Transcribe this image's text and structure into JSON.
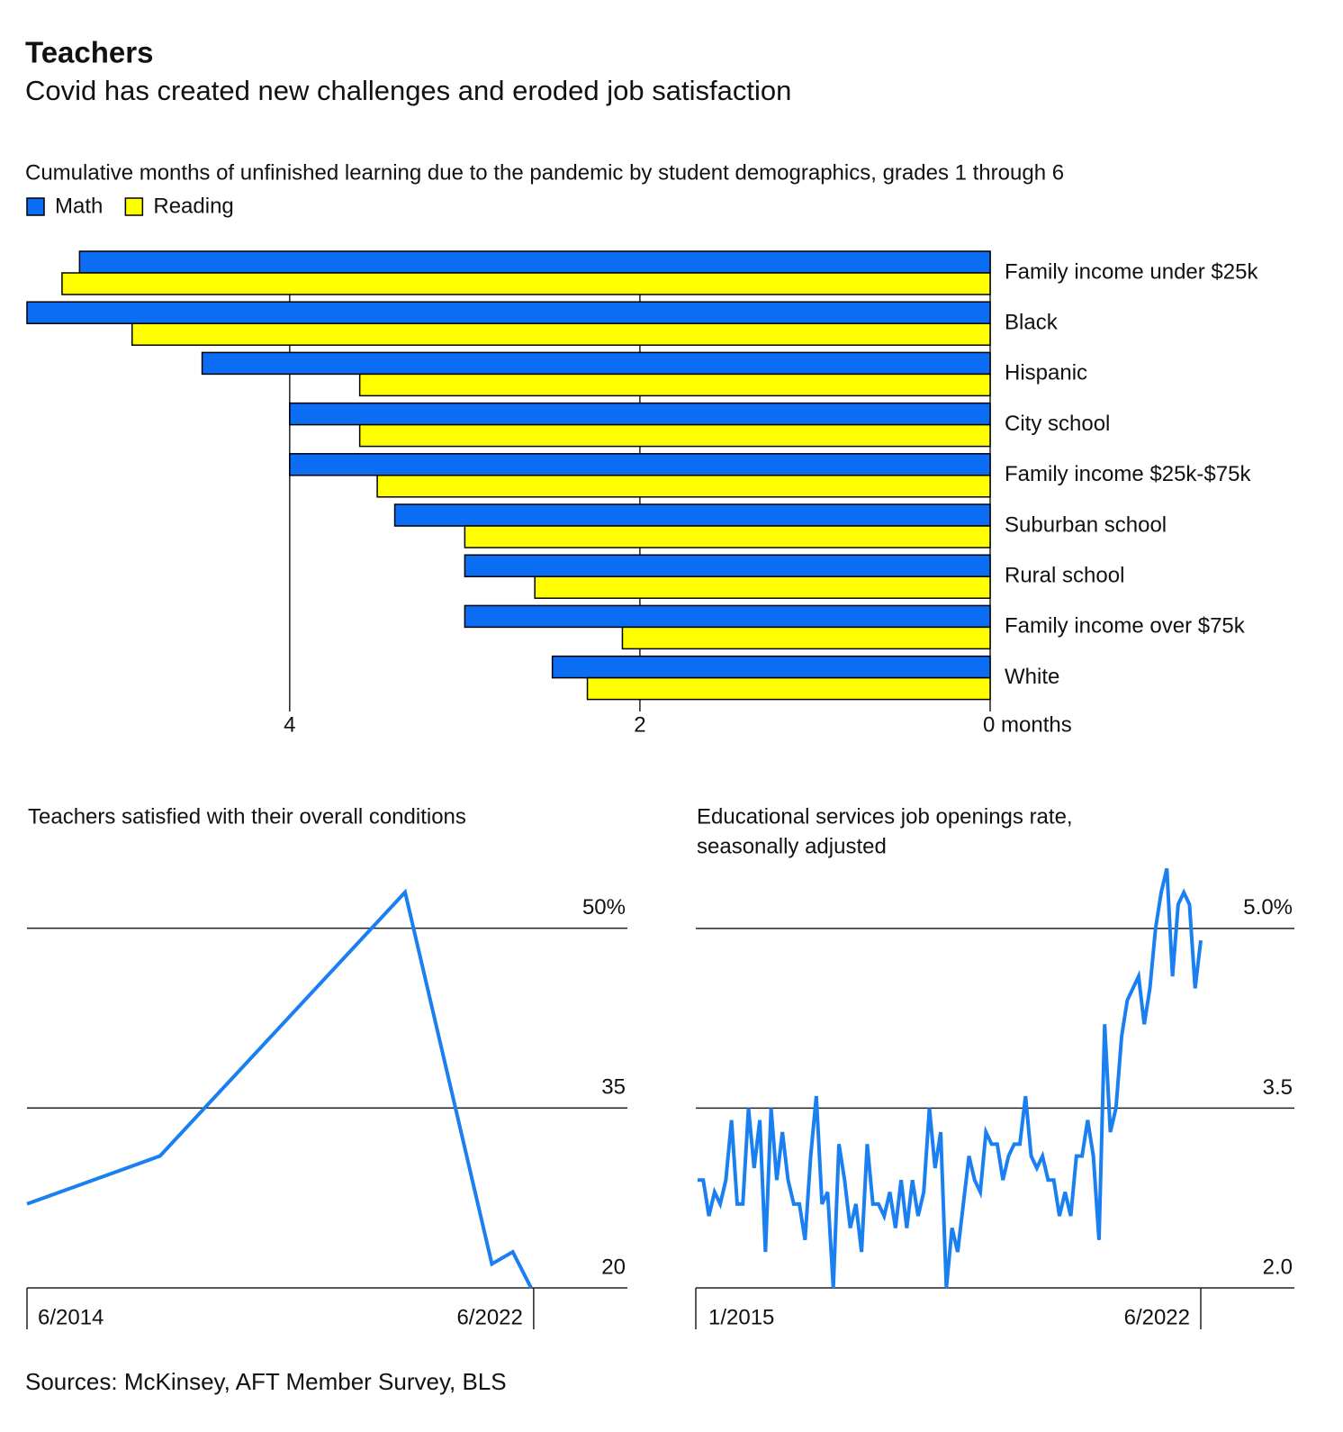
{
  "title": "Teachers",
  "subtitle": "Covid has created new challenges and eroded job satisfaction",
  "source": "Sources: McKinsey, AFT Member Survey, BLS",
  "chart_data": [
    {
      "type": "hbar",
      "title": "Cumulative months of unfinished learning due to the pandemic by student demographics, grades 1 through 6",
      "categories": [
        "Family income under $25k",
        "Black",
        "Hispanic",
        "City school",
        "Family income $25k-$75k",
        "Suburban school",
        "Rural school",
        "Family income over $75k",
        "White"
      ],
      "series": [
        {
          "name": "Math",
          "color": "#0b6cf4",
          "values": [
            5.2,
            5.5,
            4.5,
            4.0,
            4.0,
            3.4,
            3.0,
            3.0,
            2.5
          ]
        },
        {
          "name": "Reading",
          "color": "#ffff00",
          "values": [
            5.3,
            4.9,
            3.6,
            3.6,
            3.5,
            3.0,
            2.6,
            2.1,
            2.3
          ]
        }
      ],
      "xlim": [
        0,
        5.5
      ],
      "xticks": [
        4,
        2,
        {
          "value": 0,
          "label": "0 months"
        }
      ],
      "x_reversed": true,
      "grid": true,
      "legend": "top-left"
    },
    {
      "type": "line",
      "title": [
        "Teachers satisfied with their overall conditions"
      ],
      "x": [
        2014.42,
        2016.52,
        2020.39,
        2021.76,
        2022.09,
        2022.38
      ],
      "values": [
        27,
        31,
        53,
        22,
        23,
        20
      ],
      "color": "#1a7ff0",
      "xlim": [
        2014.42,
        2023.9
      ],
      "xticks": [
        {
          "value": 2014.42,
          "label": "6/2014"
        },
        {
          "value": 2022.42,
          "label": "6/2022"
        }
      ],
      "ylim": [
        20,
        55
      ],
      "yticks": [
        20,
        35,
        {
          "value": 50,
          "label": "50%"
        }
      ],
      "grid": true
    },
    {
      "type": "line",
      "title": [
        "Educational services job openings rate,",
        "seasonally adjusted"
      ],
      "categories": [
        "1/2015",
        null,
        null,
        null,
        null,
        null,
        null,
        null,
        null,
        null,
        null,
        null,
        null,
        null,
        null,
        null,
        null,
        null,
        null,
        null,
        null,
        null,
        null,
        null,
        null,
        null,
        null,
        null,
        null,
        null,
        null,
        null,
        null,
        null,
        null,
        null,
        null,
        null,
        null,
        null,
        null,
        null,
        null,
        null,
        null,
        null,
        null,
        null,
        null,
        null,
        null,
        null,
        null,
        null,
        null,
        null,
        null,
        null,
        null,
        null,
        null,
        null,
        null,
        null,
        null,
        null,
        null,
        null,
        null,
        null,
        null,
        null,
        null,
        null,
        null,
        null,
        null,
        null,
        null,
        null,
        null,
        null,
        null,
        null,
        null,
        null,
        null,
        null,
        null,
        "6/2022"
      ],
      "values": [
        2.9,
        2.9,
        2.6,
        2.8,
        2.7,
        2.9,
        3.4,
        2.7,
        2.7,
        3.5,
        3.0,
        3.4,
        2.3,
        3.5,
        2.9,
        3.3,
        2.9,
        2.7,
        2.7,
        2.4,
        3.1,
        3.6,
        2.7,
        2.8,
        2.0,
        3.2,
        2.9,
        2.5,
        2.7,
        2.3,
        3.2,
        2.7,
        2.7,
        2.6,
        2.8,
        2.5,
        2.9,
        2.5,
        2.9,
        2.6,
        2.8,
        3.5,
        3.0,
        3.3,
        2.0,
        2.5,
        2.3,
        2.7,
        3.1,
        2.9,
        2.8,
        3.3,
        3.2,
        3.2,
        2.9,
        3.1,
        3.2,
        3.2,
        3.6,
        3.1,
        3.0,
        3.1,
        2.9,
        2.9,
        2.6,
        2.8,
        2.6,
        3.1,
        3.1,
        3.4,
        3.1,
        2.4,
        4.2,
        3.3,
        3.5,
        4.1,
        4.4,
        4.5,
        4.6,
        4.2,
        4.5,
        5.0,
        5.3,
        5.5,
        4.6,
        5.2,
        5.3,
        5.2,
        4.5,
        4.9
      ],
      "color": "#1a7ff0",
      "ylim": [
        2,
        5.6
      ],
      "yticks": [
        {
          "value": 2,
          "label": "2.0"
        },
        3.5,
        {
          "value": 5,
          "label": "5.0%"
        }
      ],
      "grid": true
    }
  ]
}
